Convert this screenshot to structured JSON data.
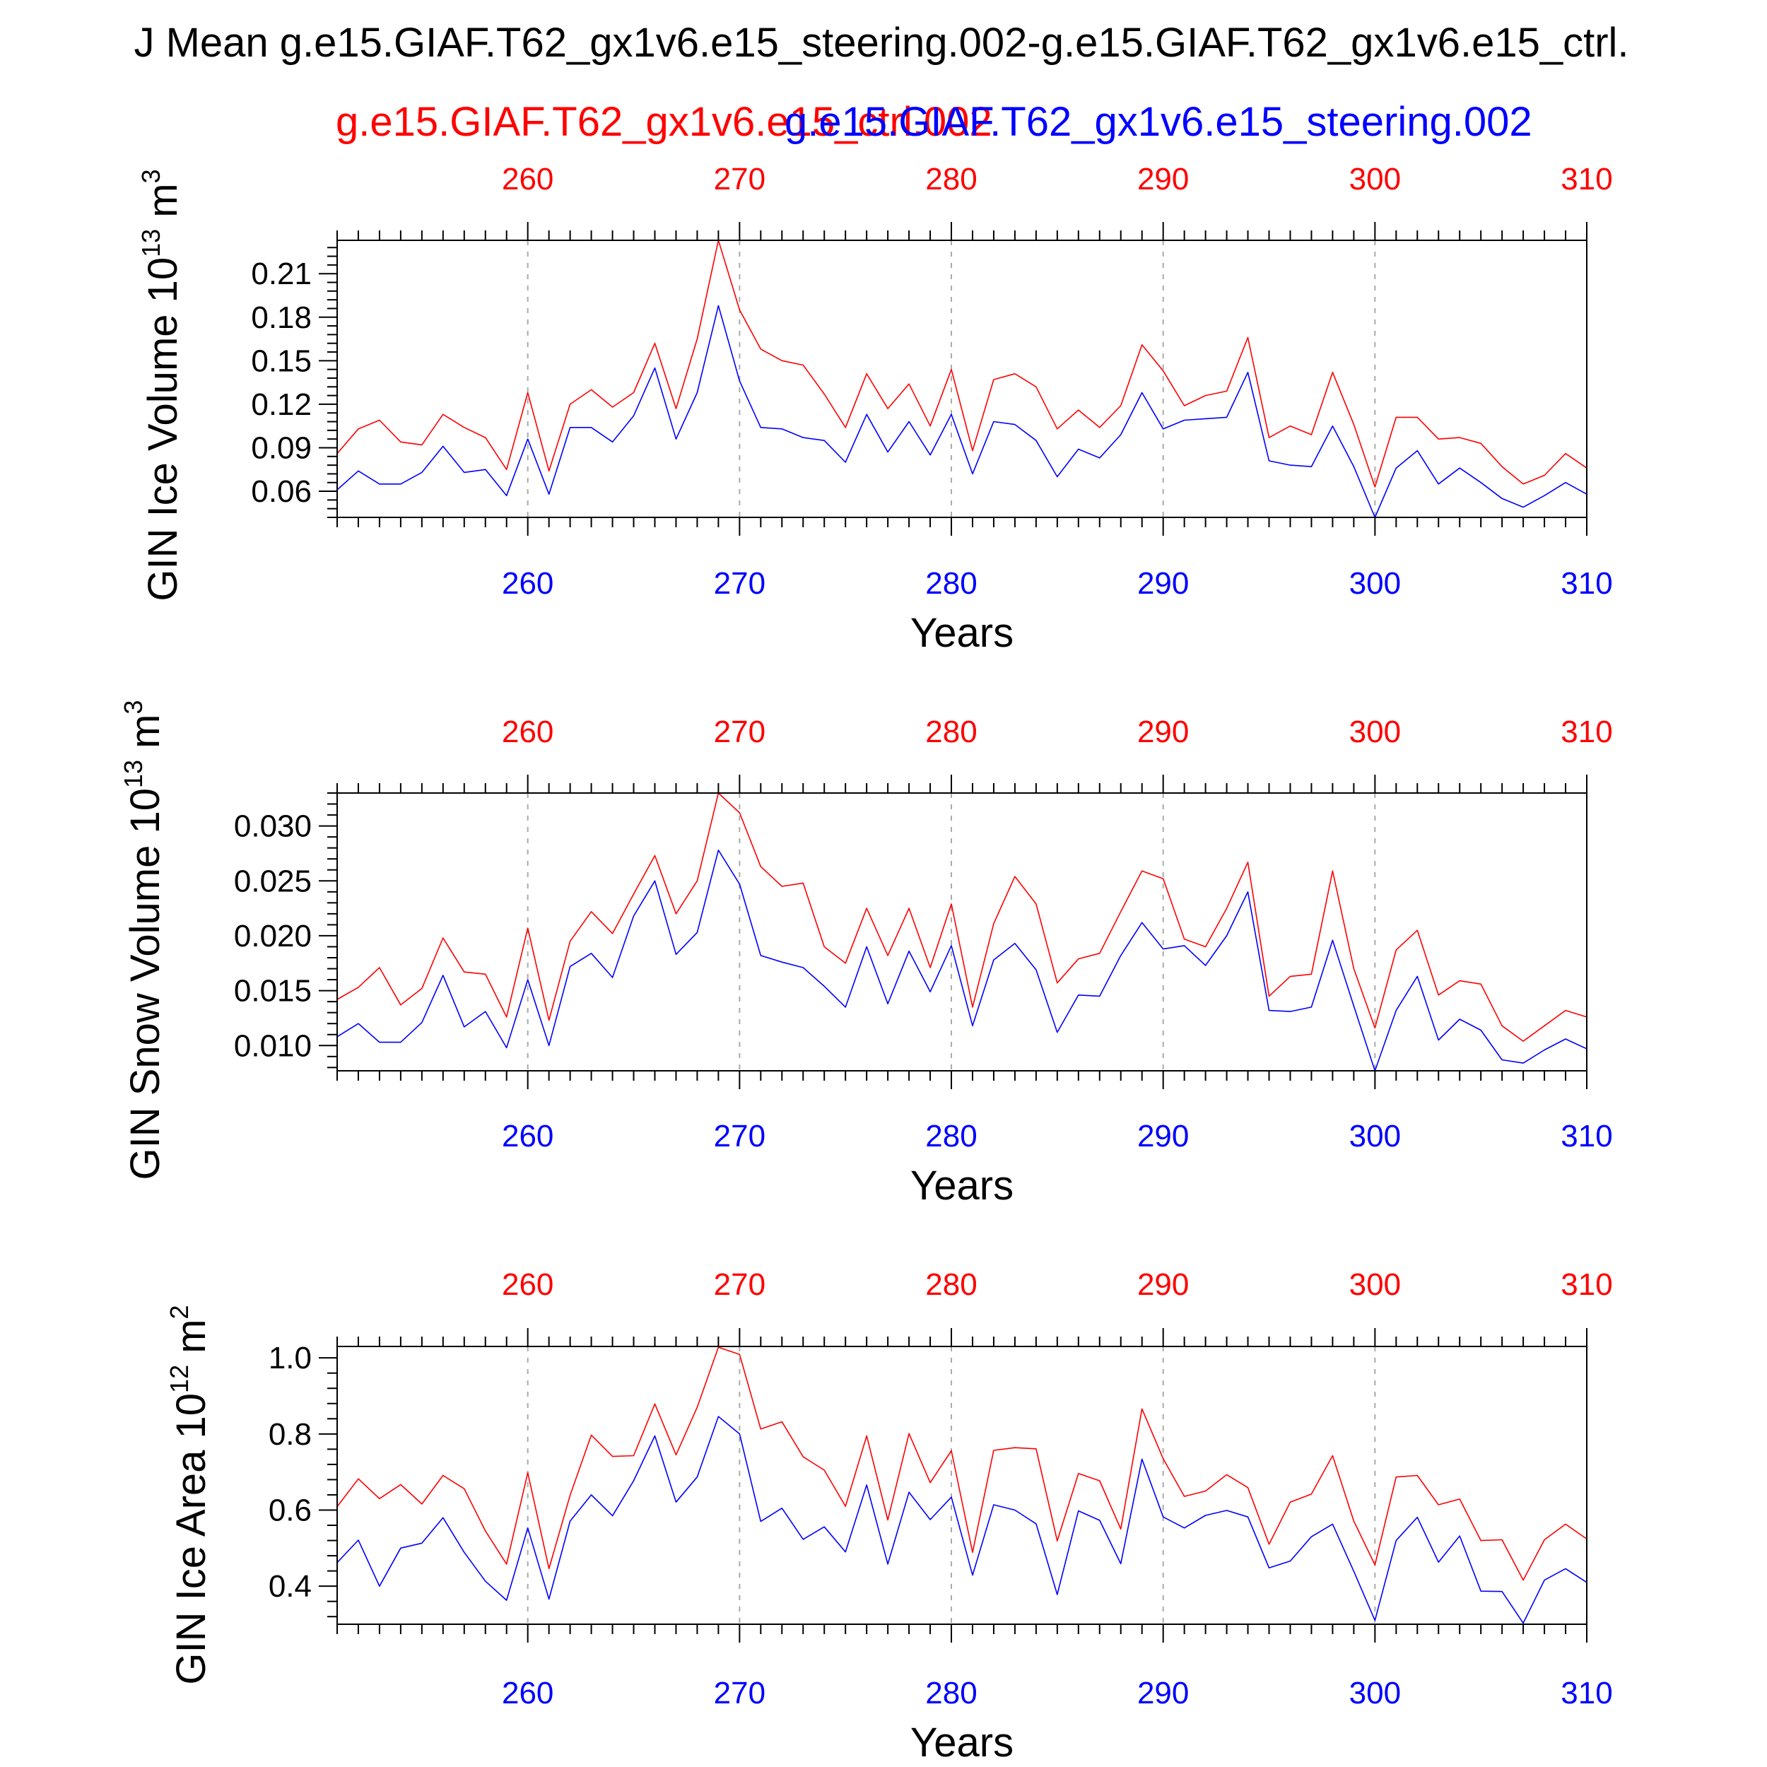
{
  "figure": {
    "title": "J Mean g.e15.GIAF.T62_gx1v6.e15_steering.002-g.e15.GIAF.T62_gx1v6.e15_ctrl.",
    "legend_red": "g.e15.GIAF.T62_gx1v6.e15_ctrl.002",
    "legend_blue": "g.e15.GIAF.T62_gx1v6.e15_steering.002",
    "red_color": "#ff0000",
    "blue_color": "#0000ff",
    "grid_color": "#aaaaaa"
  },
  "chart_data": [
    {
      "type": "line",
      "id": "ice-volume",
      "title": "",
      "ylabel": "GIN Ice Volume 10",
      "ylabel_exp": "13",
      "ylabel_unit": "m",
      "ylabel_unit_exp": "3",
      "xlabel": "Years",
      "xlim": [
        251,
        310
      ],
      "ylim": [
        0.042,
        0.233
      ],
      "yticks": [
        0.06,
        0.09,
        0.12,
        0.15,
        0.18,
        0.21
      ],
      "ytick_labels": [
        "0.06",
        "0.09",
        "0.12",
        "0.15",
        "0.18",
        "0.21"
      ],
      "xticks": [
        260,
        270,
        280,
        290,
        300,
        310
      ],
      "xtick_labels": [
        "260",
        "270",
        "280",
        "290",
        "300",
        "310"
      ],
      "x": [
        251,
        252,
        253,
        254,
        255,
        256,
        257,
        258,
        259,
        260,
        261,
        262,
        263,
        264,
        265,
        266,
        267,
        268,
        269,
        270,
        271,
        272,
        273,
        274,
        275,
        276,
        277,
        278,
        279,
        280,
        281,
        282,
        283,
        284,
        285,
        286,
        287,
        288,
        289,
        290,
        291,
        292,
        293,
        294,
        295,
        296,
        297,
        298,
        299,
        300,
        301,
        302,
        303,
        304,
        305,
        306,
        307,
        308,
        309,
        310
      ],
      "series": [
        {
          "name": "g.e15.GIAF.T62_gx1v6.e15_ctrl.002",
          "color": "#ff0000",
          "values": [
            0.086,
            0.103,
            0.109,
            0.094,
            0.092,
            0.113,
            0.104,
            0.097,
            0.075,
            0.128,
            0.074,
            0.12,
            0.13,
            0.118,
            0.128,
            0.162,
            0.117,
            0.165,
            0.233,
            0.185,
            0.158,
            0.15,
            0.147,
            0.127,
            0.104,
            0.141,
            0.117,
            0.134,
            0.105,
            0.144,
            0.088,
            0.137,
            0.141,
            0.132,
            0.103,
            0.116,
            0.104,
            0.119,
            0.161,
            0.143,
            0.119,
            0.126,
            0.129,
            0.166,
            0.097,
            0.105,
            0.099,
            0.142,
            0.106,
            0.063,
            0.111,
            0.111,
            0.096,
            0.097,
            0.093,
            0.077,
            0.065,
            0.071,
            0.086,
            0.076
          ]
        },
        {
          "name": "g.e15.GIAF.T62_gx1v6.e15_steering.002",
          "color": "#0000ff",
          "values": [
            0.061,
            0.074,
            0.065,
            0.065,
            0.073,
            0.091,
            0.073,
            0.075,
            0.057,
            0.096,
            0.058,
            0.104,
            0.104,
            0.094,
            0.112,
            0.145,
            0.096,
            0.128,
            0.188,
            0.136,
            0.104,
            0.103,
            0.097,
            0.095,
            0.08,
            0.113,
            0.087,
            0.108,
            0.085,
            0.113,
            0.072,
            0.108,
            0.106,
            0.095,
            0.07,
            0.089,
            0.083,
            0.099,
            0.128,
            0.103,
            0.109,
            0.11,
            0.111,
            0.142,
            0.081,
            0.078,
            0.077,
            0.105,
            0.077,
            0.042,
            0.076,
            0.088,
            0.065,
            0.076,
            0.066,
            0.055,
            0.049,
            0.057,
            0.066,
            0.058
          ]
        }
      ]
    },
    {
      "type": "line",
      "id": "snow-volume",
      "title": "",
      "ylabel": "GIN Snow Volume 10",
      "ylabel_exp": "13",
      "ylabel_unit": "m",
      "ylabel_unit_exp": "3",
      "xlabel": "Years",
      "xlim": [
        251,
        310
      ],
      "ylim": [
        0.0077,
        0.033
      ],
      "yticks": [
        0.01,
        0.015,
        0.02,
        0.025,
        0.03
      ],
      "ytick_labels": [
        "0.010",
        "0.015",
        "0.020",
        "0.025",
        "0.030"
      ],
      "xticks": [
        260,
        270,
        280,
        290,
        300,
        310
      ],
      "xtick_labels": [
        "260",
        "270",
        "280",
        "290",
        "300",
        "310"
      ],
      "x": [
        251,
        252,
        253,
        254,
        255,
        256,
        257,
        258,
        259,
        260,
        261,
        262,
        263,
        264,
        265,
        266,
        267,
        268,
        269,
        270,
        271,
        272,
        273,
        274,
        275,
        276,
        277,
        278,
        279,
        280,
        281,
        282,
        283,
        284,
        285,
        286,
        287,
        288,
        289,
        290,
        291,
        292,
        293,
        294,
        295,
        296,
        297,
        298,
        299,
        300,
        301,
        302,
        303,
        304,
        305,
        306,
        307,
        308,
        309,
        310
      ],
      "series": [
        {
          "name": "g.e15.GIAF.T62_gx1v6.e15_ctrl.002",
          "color": "#ff0000",
          "values": [
            0.0142,
            0.0153,
            0.0171,
            0.0137,
            0.0152,
            0.0198,
            0.0167,
            0.0165,
            0.0126,
            0.0207,
            0.0123,
            0.0195,
            0.0222,
            0.0202,
            0.0238,
            0.0273,
            0.022,
            0.025,
            0.033,
            0.0312,
            0.0263,
            0.0245,
            0.0248,
            0.019,
            0.0175,
            0.0225,
            0.0182,
            0.0225,
            0.0171,
            0.0229,
            0.0135,
            0.0211,
            0.0254,
            0.0229,
            0.0157,
            0.0179,
            0.0184,
            0.0222,
            0.0259,
            0.0252,
            0.0197,
            0.019,
            0.0225,
            0.0267,
            0.0145,
            0.0163,
            0.0165,
            0.0259,
            0.017,
            0.0116,
            0.0187,
            0.0205,
            0.0146,
            0.0159,
            0.0156,
            0.0118,
            0.0104,
            0.0118,
            0.0132,
            0.0126
          ]
        },
        {
          "name": "g.e15.GIAF.T62_gx1v6.e15_steering.002",
          "color": "#0000ff",
          "values": [
            0.0108,
            0.012,
            0.0103,
            0.0103,
            0.0121,
            0.0164,
            0.0117,
            0.0131,
            0.0098,
            0.016,
            0.01,
            0.0172,
            0.0184,
            0.0162,
            0.0218,
            0.025,
            0.0183,
            0.0203,
            0.0278,
            0.0247,
            0.0182,
            0.0176,
            0.0171,
            0.0154,
            0.0135,
            0.019,
            0.0138,
            0.0186,
            0.0149,
            0.0191,
            0.0118,
            0.0178,
            0.0193,
            0.0169,
            0.0112,
            0.0146,
            0.0145,
            0.0182,
            0.0212,
            0.0188,
            0.0191,
            0.0173,
            0.02,
            0.024,
            0.0132,
            0.0131,
            0.0135,
            0.0196,
            0.0136,
            0.0077,
            0.0132,
            0.0163,
            0.0105,
            0.0124,
            0.0114,
            0.0087,
            0.0084,
            0.0096,
            0.0106,
            0.0097
          ]
        }
      ]
    },
    {
      "type": "line",
      "id": "ice-area",
      "title": "",
      "ylabel": "GIN Ice Area 10",
      "ylabel_exp": "12",
      "ylabel_unit": "m",
      "ylabel_unit_exp": "2",
      "xlabel": "Years",
      "xlim": [
        251,
        310
      ],
      "ylim": [
        0.3,
        1.03
      ],
      "yticks": [
        0.4,
        0.6,
        0.8,
        1.0
      ],
      "ytick_labels": [
        "0.4",
        "0.6",
        "0.8",
        "1.0"
      ],
      "xticks": [
        260,
        270,
        280,
        290,
        300,
        310
      ],
      "xtick_labels": [
        "260",
        "270",
        "280",
        "290",
        "300",
        "310"
      ],
      "x": [
        251,
        252,
        253,
        254,
        255,
        256,
        257,
        258,
        259,
        260,
        261,
        262,
        263,
        264,
        265,
        266,
        267,
        268,
        269,
        270,
        271,
        272,
        273,
        274,
        275,
        276,
        277,
        278,
        279,
        280,
        281,
        282,
        283,
        284,
        285,
        286,
        287,
        288,
        289,
        290,
        291,
        292,
        293,
        294,
        295,
        296,
        297,
        298,
        299,
        300,
        301,
        302,
        303,
        304,
        305,
        306,
        307,
        308,
        309,
        310
      ],
      "series": [
        {
          "name": "g.e15.GIAF.T62_gx1v6.e15_ctrl.002",
          "color": "#ff0000",
          "values": [
            0.609,
            0.682,
            0.63,
            0.667,
            0.616,
            0.691,
            0.656,
            0.545,
            0.458,
            0.698,
            0.446,
            0.639,
            0.797,
            0.741,
            0.743,
            0.879,
            0.745,
            0.87,
            1.028,
            1.009,
            0.813,
            0.832,
            0.74,
            0.705,
            0.61,
            0.795,
            0.574,
            0.801,
            0.672,
            0.756,
            0.489,
            0.757,
            0.764,
            0.761,
            0.519,
            0.696,
            0.677,
            0.55,
            0.866,
            0.735,
            0.636,
            0.65,
            0.693,
            0.659,
            0.51,
            0.621,
            0.642,
            0.743,
            0.571,
            0.456,
            0.687,
            0.691,
            0.614,
            0.629,
            0.52,
            0.522,
            0.416,
            0.522,
            0.563,
            0.524
          ]
        },
        {
          "name": "g.e15.GIAF.T62_gx1v6.e15_steering.002",
          "color": "#0000ff",
          "values": [
            0.462,
            0.521,
            0.4,
            0.5,
            0.513,
            0.58,
            0.489,
            0.413,
            0.363,
            0.553,
            0.366,
            0.571,
            0.64,
            0.585,
            0.677,
            0.795,
            0.621,
            0.687,
            0.846,
            0.8,
            0.57,
            0.605,
            0.523,
            0.556,
            0.49,
            0.666,
            0.458,
            0.647,
            0.575,
            0.634,
            0.429,
            0.614,
            0.6,
            0.564,
            0.378,
            0.598,
            0.573,
            0.459,
            0.734,
            0.582,
            0.553,
            0.586,
            0.599,
            0.582,
            0.448,
            0.466,
            0.53,
            0.563,
            0.439,
            0.31,
            0.52,
            0.581,
            0.463,
            0.532,
            0.387,
            0.386,
            0.303,
            0.416,
            0.446,
            0.41
          ]
        }
      ]
    }
  ]
}
